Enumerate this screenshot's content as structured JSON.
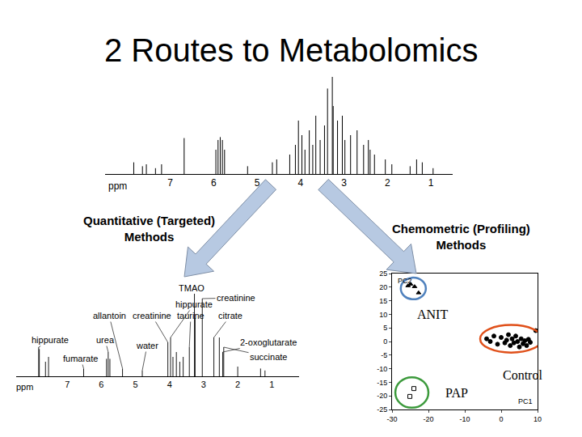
{
  "title": "2 Routes to Metabolomics",
  "routes": [
    [
      "Quantitative (Targeted)",
      "Methods"
    ],
    [
      "Chemometric (Profiling)",
      "Methods"
    ]
  ],
  "chart_data": [
    {
      "type": "spectrum",
      "x_label": "ppm",
      "xlim": [
        8.5,
        0.5
      ],
      "xticks": [
        7,
        6,
        5,
        4,
        3,
        2,
        1
      ],
      "ylim": [
        0,
        100
      ],
      "tick_labels": "x",
      "peaks": [
        {
          "ppm": 7.84,
          "height": 12
        },
        {
          "ppm": 7.64,
          "height": 8
        },
        {
          "ppm": 7.55,
          "height": 10
        },
        {
          "ppm": 7.34,
          "height": 6
        },
        {
          "ppm": 7.2,
          "height": 10
        },
        {
          "ppm": 6.68,
          "height": 37
        },
        {
          "ppm": 5.95,
          "height": 25
        },
        {
          "ppm": 5.9,
          "height": 35
        },
        {
          "ppm": 5.85,
          "height": 38
        },
        {
          "ppm": 5.8,
          "height": 35
        },
        {
          "ppm": 5.75,
          "height": 25
        },
        {
          "ppm": 5.22,
          "height": 8
        },
        {
          "ppm": 4.65,
          "height": 12
        },
        {
          "ppm": 4.55,
          "height": 15
        },
        {
          "ppm": 4.25,
          "height": 20
        },
        {
          "ppm": 4.12,
          "height": 30
        },
        {
          "ppm": 4.05,
          "height": 55
        },
        {
          "ppm": 3.97,
          "height": 40
        },
        {
          "ppm": 3.9,
          "height": 25
        },
        {
          "ppm": 3.8,
          "height": 45
        },
        {
          "ppm": 3.72,
          "height": 30
        },
        {
          "ppm": 3.65,
          "height": 60
        },
        {
          "ppm": 3.55,
          "height": 35
        },
        {
          "ppm": 3.45,
          "height": 50
        },
        {
          "ppm": 3.38,
          "height": 88
        },
        {
          "ppm": 3.27,
          "height": 100
        },
        {
          "ppm": 3.25,
          "height": 70
        },
        {
          "ppm": 3.15,
          "height": 55
        },
        {
          "ppm": 3.04,
          "height": 60
        },
        {
          "ppm": 2.98,
          "height": 35
        },
        {
          "ppm": 2.85,
          "height": 40
        },
        {
          "ppm": 2.7,
          "height": 45
        },
        {
          "ppm": 2.55,
          "height": 30
        },
        {
          "ppm": 2.44,
          "height": 35
        },
        {
          "ppm": 2.4,
          "height": 25
        },
        {
          "ppm": 2.3,
          "height": 20
        },
        {
          "ppm": 2.05,
          "height": 15
        },
        {
          "ppm": 1.9,
          "height": 10
        },
        {
          "ppm": 1.48,
          "height": 8
        },
        {
          "ppm": 1.33,
          "height": 15
        },
        {
          "ppm": 1.2,
          "height": 12
        },
        {
          "ppm": 0.95,
          "height": 6
        }
      ]
    },
    {
      "type": "spectrum",
      "x_label": "ppm",
      "xlim": [
        8.5,
        0.2
      ],
      "xticks": [
        7,
        6,
        5,
        4,
        3,
        2,
        1
      ],
      "ylim": [
        0,
        100
      ],
      "tick_labels": "x",
      "peaks": [
        {
          "ppm": 7.84,
          "height": 30,
          "label": "hippurate"
        },
        {
          "ppm": 7.82,
          "height": 28
        },
        {
          "ppm": 7.64,
          "height": 15
        },
        {
          "ppm": 7.55,
          "height": 20
        },
        {
          "ppm": 6.52,
          "height": 8,
          "label": "fumarate"
        },
        {
          "ppm": 5.85,
          "height": 18
        },
        {
          "ppm": 5.8,
          "height": 25,
          "label": "urea"
        },
        {
          "ppm": 5.75,
          "height": 18
        },
        {
          "ppm": 5.38,
          "height": 8,
          "label": "allantoin"
        },
        {
          "ppm": 4.8,
          "height": 6,
          "label": "water"
        },
        {
          "ppm": 4.05,
          "height": 35,
          "label": "creatinine"
        },
        {
          "ppm": 3.97,
          "height": 40,
          "label": "hippurate"
        },
        {
          "ppm": 3.9,
          "height": 20
        },
        {
          "ppm": 3.8,
          "height": 25
        },
        {
          "ppm": 3.7,
          "height": 15
        },
        {
          "ppm": 3.6,
          "height": 20
        },
        {
          "ppm": 3.42,
          "height": 30,
          "label": "taurine"
        },
        {
          "ppm": 3.27,
          "height": 85,
          "label": "TMAO"
        },
        {
          "ppm": 3.25,
          "height": 60
        },
        {
          "ppm": 3.04,
          "height": 80,
          "label": "creatinine"
        },
        {
          "ppm": 2.7,
          "height": 40,
          "label": "citrate"
        },
        {
          "ppm": 2.54,
          "height": 40
        },
        {
          "ppm": 2.44,
          "height": 25,
          "label": "2-oxoglutarate"
        },
        {
          "ppm": 2.41,
          "height": 30,
          "label": "succinate"
        },
        {
          "ppm": 2.0,
          "height": 10
        },
        {
          "ppm": 1.33,
          "height": 8
        },
        {
          "ppm": 1.2,
          "height": 6
        }
      ]
    },
    {
      "type": "scatter",
      "x_label": "PC1",
      "y_label": "PC2",
      "xlim": [
        -30,
        10
      ],
      "ylim": [
        -25,
        25
      ],
      "xticks": [
        -30,
        -20,
        -10,
        0,
        10
      ],
      "yticks": [
        -25,
        -20,
        -15,
        -10,
        -5,
        0,
        5,
        10,
        15,
        20,
        25
      ],
      "series": [
        {
          "name": "ANIT",
          "color": "#4f81bd",
          "marker": "triangle-up",
          "x": [
            -25.6,
            -24.9,
            -23.8,
            -22.7
          ],
          "y": [
            20.5,
            21.1,
            20.2,
            17.9
          ]
        },
        {
          "name": "PAP",
          "color": "#3c9a3c",
          "marker": "square-open",
          "x": [
            -24,
            -25.1
          ],
          "y": [
            -17.3,
            -20.2
          ]
        },
        {
          "name": "Control",
          "color": "#e0501a",
          "marker": "circle",
          "x": [
            -4,
            -3,
            -2,
            -1,
            0,
            1,
            1.5,
            2,
            2.5,
            3,
            3.5,
            4,
            4.5,
            5,
            5.5,
            6,
            6.5,
            7,
            7.5,
            8,
            9.5
          ],
          "y": [
            1,
            0,
            2,
            -1,
            1.5,
            -0.5,
            0.5,
            2.5,
            -1.5,
            1,
            -0.5,
            2,
            0,
            -2,
            1,
            -0.8,
            0.3,
            -1.5,
            0.8,
            -0.3,
            4
          ]
        }
      ]
    }
  ]
}
